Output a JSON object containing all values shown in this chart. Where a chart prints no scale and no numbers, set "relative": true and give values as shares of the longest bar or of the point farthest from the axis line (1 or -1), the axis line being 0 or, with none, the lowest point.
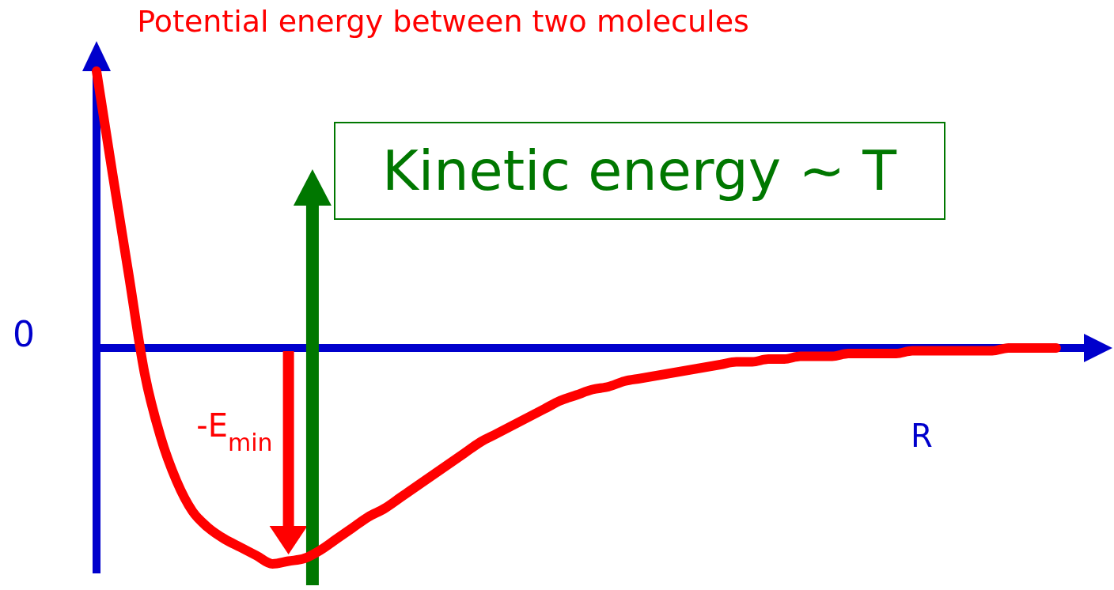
{
  "chart_data": {
    "type": "line",
    "relative": true,
    "title": "Potential energy between two molecules",
    "xlabel": "R",
    "grid": false,
    "marker": "none",
    "line_style": "solid",
    "categories": [
      null,
      null,
      null,
      null,
      null,
      null,
      null,
      null,
      null,
      null,
      null,
      null,
      null,
      null,
      null,
      null,
      null,
      null,
      null,
      null,
      null,
      null,
      null,
      null,
      null,
      null,
      null,
      null,
      null,
      null,
      null,
      null,
      null,
      null,
      null,
      null,
      null,
      null,
      null,
      null,
      null,
      null,
      null,
      null,
      null,
      null,
      null,
      null,
      null,
      null,
      null,
      null,
      null,
      null,
      null,
      null,
      null,
      null,
      null,
      null,
      null
    ],
    "series": [
      {
        "color": "#ff0000",
        "values": [
          1.0,
          0.63,
          0.27,
          -0.09,
          -0.32,
          -0.48,
          -0.59,
          -0.65,
          -0.69,
          -0.72,
          -0.75,
          -0.78,
          -0.77,
          -0.76,
          -0.73,
          -0.69,
          -0.65,
          -0.61,
          -0.58,
          -0.54,
          -0.5,
          -0.46,
          -0.42,
          -0.38,
          -0.34,
          -0.31,
          -0.28,
          -0.25,
          -0.22,
          -0.19,
          -0.17,
          -0.15,
          -0.14,
          -0.12,
          -0.11,
          -0.1,
          -0.09,
          -0.08,
          -0.07,
          -0.06,
          -0.05,
          -0.05,
          -0.04,
          -0.04,
          -0.03,
          -0.03,
          -0.03,
          -0.02,
          -0.02,
          -0.02,
          -0.02,
          -0.01,
          -0.01,
          -0.01,
          -0.01,
          -0.01,
          -0.01,
          0.0,
          0.0,
          0.0,
          0.0
        ]
      }
    ],
    "ref_lines": [
      {
        "axis": "y",
        "value": 0,
        "label": "0",
        "color": "#0000cc"
      }
    ],
    "annotations": [
      "-E$_{min}$",
      "Kinetic energy ~ T"
    ]
  }
}
